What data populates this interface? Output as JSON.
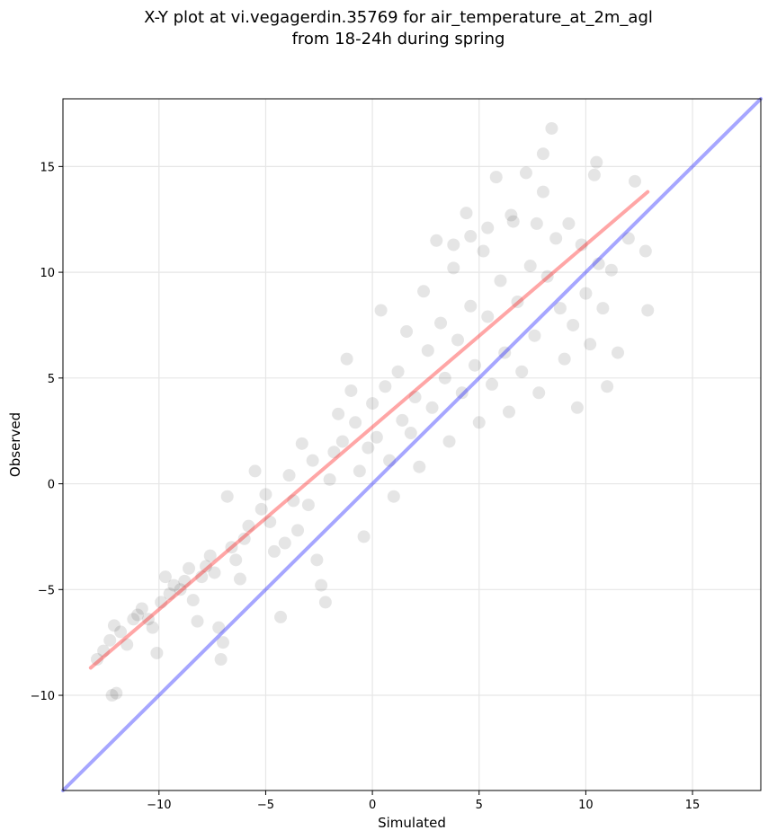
{
  "title_lines": [
    "X-Y plot at vi.vegagerdin.35769 for air_temperature_at_2m_agl",
    "from 18-24h during spring"
  ],
  "chart_data": {
    "type": "scatter",
    "xlabel": "Simulated",
    "ylabel": "Observed",
    "xlim": [
      -14.5,
      18.2
    ],
    "ylim": [
      -14.5,
      18.2
    ],
    "xticks": [
      -10,
      -5,
      0,
      5,
      10,
      15
    ],
    "yticks": [
      -10,
      -5,
      0,
      5,
      10,
      15
    ],
    "tick_labels": [
      "−10",
      "−5",
      "0",
      "5",
      "10",
      "15"
    ],
    "grid": true,
    "colors": {
      "points": "#000000",
      "regression": "#ff0000",
      "identity": "#0000ff"
    },
    "regression_line": {
      "x": [
        -13.2,
        12.9
      ],
      "y": [
        -8.7,
        13.8
      ]
    },
    "identity_line": {
      "x": [
        -14.5,
        18.2
      ],
      "y": [
        -14.5,
        18.2
      ]
    },
    "points": [
      [
        -12.9,
        -8.3
      ],
      [
        -12.6,
        -7.9
      ],
      [
        -12.3,
        -7.4
      ],
      [
        -12.1,
        -6.7
      ],
      [
        -11.8,
        -7.0
      ],
      [
        -12.2,
        -10.0
      ],
      [
        -12.0,
        -9.9
      ],
      [
        -11.5,
        -7.6
      ],
      [
        -11.2,
        -6.4
      ],
      [
        -11.0,
        -6.2
      ],
      [
        -10.8,
        -5.9
      ],
      [
        -10.5,
        -6.4
      ],
      [
        -10.3,
        -6.8
      ],
      [
        -10.1,
        -8.0
      ],
      [
        -9.9,
        -5.6
      ],
      [
        -9.7,
        -4.4
      ],
      [
        -9.5,
        -5.2
      ],
      [
        -9.3,
        -4.8
      ],
      [
        -9.0,
        -5.0
      ],
      [
        -8.8,
        -4.6
      ],
      [
        -8.6,
        -4.0
      ],
      [
        -8.4,
        -5.5
      ],
      [
        -8.2,
        -6.5
      ],
      [
        -8.0,
        -4.4
      ],
      [
        -7.8,
        -3.9
      ],
      [
        -7.6,
        -3.4
      ],
      [
        -7.4,
        -4.2
      ],
      [
        -7.2,
        -6.8
      ],
      [
        -7.1,
        -8.3
      ],
      [
        -7.0,
        -7.5
      ],
      [
        -6.8,
        -0.6
      ],
      [
        -6.6,
        -3.0
      ],
      [
        -6.4,
        -3.6
      ],
      [
        -6.2,
        -4.5
      ],
      [
        -6.0,
        -2.6
      ],
      [
        -5.8,
        -2.0
      ],
      [
        -5.5,
        0.6
      ],
      [
        -5.2,
        -1.2
      ],
      [
        -5.0,
        -0.5
      ],
      [
        -4.8,
        -1.8
      ],
      [
        -4.6,
        -3.2
      ],
      [
        -4.3,
        -6.3
      ],
      [
        -4.1,
        -2.8
      ],
      [
        -3.9,
        0.4
      ],
      [
        -3.7,
        -0.8
      ],
      [
        -3.5,
        -2.2
      ],
      [
        -3.3,
        1.9
      ],
      [
        -3.0,
        -1.0
      ],
      [
        -2.8,
        1.1
      ],
      [
        -2.6,
        -3.6
      ],
      [
        -2.4,
        -4.8
      ],
      [
        -2.2,
        -5.6
      ],
      [
        -2.0,
        0.2
      ],
      [
        -1.8,
        1.5
      ],
      [
        -1.6,
        3.3
      ],
      [
        -1.4,
        2.0
      ],
      [
        -1.2,
        5.9
      ],
      [
        -1.0,
        4.4
      ],
      [
        -0.8,
        2.9
      ],
      [
        -0.6,
        0.6
      ],
      [
        -0.4,
        -2.5
      ],
      [
        -0.2,
        1.7
      ],
      [
        0.0,
        3.8
      ],
      [
        0.2,
        2.2
      ],
      [
        0.4,
        8.2
      ],
      [
        0.6,
        4.6
      ],
      [
        0.8,
        1.1
      ],
      [
        1.0,
        -0.6
      ],
      [
        1.2,
        5.3
      ],
      [
        1.4,
        3.0
      ],
      [
        1.6,
        7.2
      ],
      [
        1.8,
        2.4
      ],
      [
        2.0,
        4.1
      ],
      [
        2.2,
        0.8
      ],
      [
        2.4,
        9.1
      ],
      [
        2.6,
        6.3
      ],
      [
        2.8,
        3.6
      ],
      [
        3.0,
        11.5
      ],
      [
        3.2,
        7.6
      ],
      [
        3.4,
        5.0
      ],
      [
        3.6,
        2.0
      ],
      [
        3.8,
        10.2
      ],
      [
        4.0,
        6.8
      ],
      [
        4.2,
        4.3
      ],
      [
        4.4,
        12.8
      ],
      [
        4.6,
        8.4
      ],
      [
        4.8,
        5.6
      ],
      [
        5.0,
        2.9
      ],
      [
        5.2,
        11.0
      ],
      [
        5.4,
        7.9
      ],
      [
        5.6,
        4.7
      ],
      [
        5.8,
        14.5
      ],
      [
        6.0,
        9.6
      ],
      [
        6.2,
        6.2
      ],
      [
        6.4,
        3.4
      ],
      [
        6.6,
        12.4
      ],
      [
        6.8,
        8.6
      ],
      [
        7.0,
        5.3
      ],
      [
        7.2,
        14.7
      ],
      [
        7.4,
        10.3
      ],
      [
        7.6,
        7.0
      ],
      [
        7.8,
        4.3
      ],
      [
        8.0,
        13.8
      ],
      [
        8.2,
        9.8
      ],
      [
        8.4,
        16.8
      ],
      [
        8.6,
        11.6
      ],
      [
        8.8,
        8.3
      ],
      [
        9.0,
        5.9
      ],
      [
        9.2,
        12.3
      ],
      [
        9.4,
        7.5
      ],
      [
        9.6,
        3.6
      ],
      [
        9.8,
        11.3
      ],
      [
        10.0,
        9.0
      ],
      [
        10.2,
        6.6
      ],
      [
        10.4,
        14.6
      ],
      [
        10.6,
        10.4
      ],
      [
        10.8,
        8.3
      ],
      [
        11.0,
        4.6
      ],
      [
        11.2,
        10.1
      ],
      [
        11.5,
        6.2
      ],
      [
        12.0,
        11.6
      ],
      [
        12.3,
        14.3
      ],
      [
        12.8,
        11.0
      ],
      [
        12.9,
        8.2
      ],
      [
        8.0,
        15.6
      ],
      [
        10.5,
        15.2
      ],
      [
        6.5,
        12.7
      ],
      [
        7.7,
        12.3
      ],
      [
        5.4,
        12.1
      ],
      [
        4.6,
        11.7
      ],
      [
        3.8,
        11.3
      ]
    ]
  }
}
